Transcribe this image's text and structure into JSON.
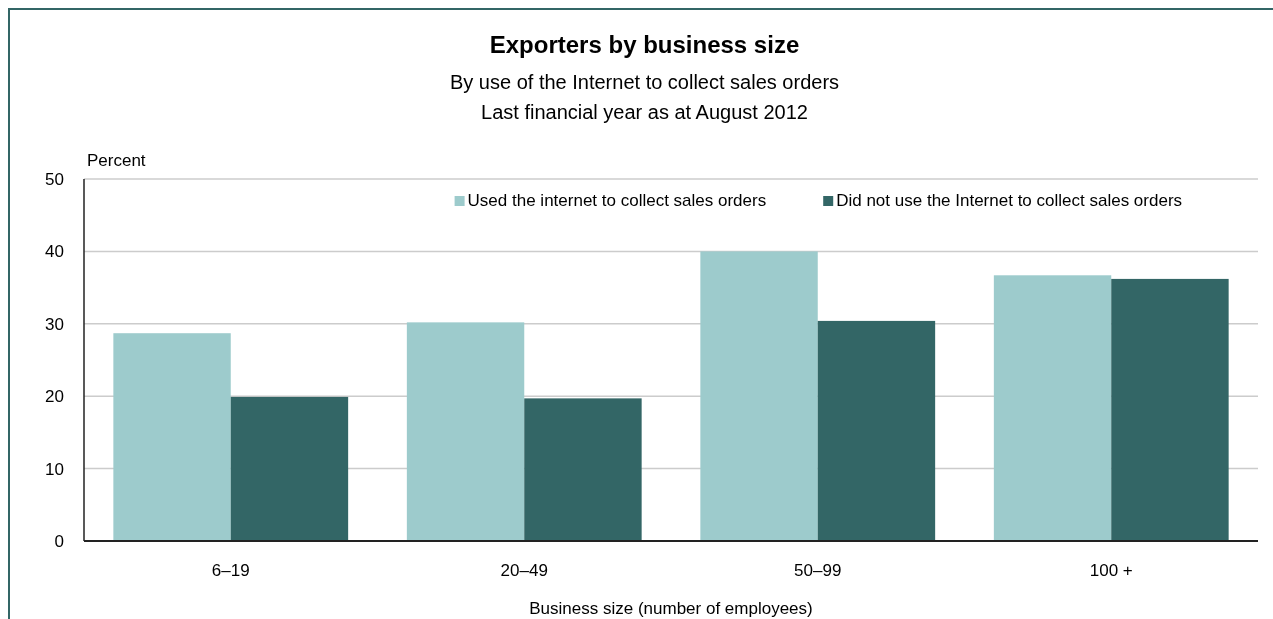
{
  "chart_data": {
    "type": "bar",
    "title": "Exporters by business size",
    "subtitle": "By use of the Internet to collect sales orders\nLast financial year as at August 2012",
    "ylabel": "Percent",
    "xlabel": "Business size (number of employees)",
    "categories": [
      "6–19",
      "20–49",
      "50–99",
      "100 +"
    ],
    "series": [
      {
        "name": "Used the internet to collect sales orders",
        "color": "#9dcbcc",
        "values": [
          28.7,
          30.2,
          40,
          36.7
        ]
      },
      {
        "name": "Did not use the Internet to collect sales orders",
        "color": "#336666",
        "values": [
          19.9,
          19.7,
          30.4,
          36.2
        ]
      }
    ],
    "ylim": [
      0,
      50
    ],
    "yticks": [
      0,
      10,
      20,
      30,
      40,
      50
    ],
    "grid": "y",
    "legend": "top right"
  }
}
